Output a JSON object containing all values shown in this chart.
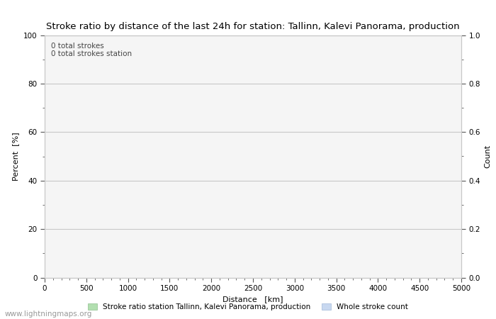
{
  "title": "Stroke ratio by distance of the last 24h for station: Tallinn, Kalevi Panorama, production",
  "title_fontsize": 9.5,
  "xlabel": "Distance   [km]",
  "ylabel_left": "Percent  [%]",
  "ylabel_right": "Count",
  "xlim": [
    0,
    5000
  ],
  "ylim_left": [
    0,
    100
  ],
  "ylim_right": [
    0.0,
    1.0
  ],
  "xticks": [
    0,
    500,
    1000,
    1500,
    2000,
    2500,
    3000,
    3500,
    4000,
    4500,
    5000
  ],
  "yticks_left": [
    0,
    20,
    40,
    60,
    80,
    100
  ],
  "yticks_right": [
    0.0,
    0.2,
    0.4,
    0.6,
    0.8,
    1.0
  ],
  "annotation_lines": [
    "0 total strokes",
    "0 total strokes station"
  ],
  "legend_label_green": "Stroke ratio station Tallinn, Kalevi Panorama, production",
  "legend_label_blue": "Whole stroke count",
  "legend_color_green": "#b2dfb0",
  "legend_color_blue": "#c8d8f0",
  "legend_edge_green": "#90c090",
  "legend_edge_blue": "#a0b8d8",
  "grid_color": "#c8c8c8",
  "plot_bg_color": "#f5f5f5",
  "background_color": "#ffffff",
  "watermark": "www.lightningmaps.org",
  "watermark_fontsize": 7.5,
  "watermark_color": "#999999",
  "tick_color": "#555555",
  "label_fontsize": 8,
  "tick_fontsize": 7.5
}
